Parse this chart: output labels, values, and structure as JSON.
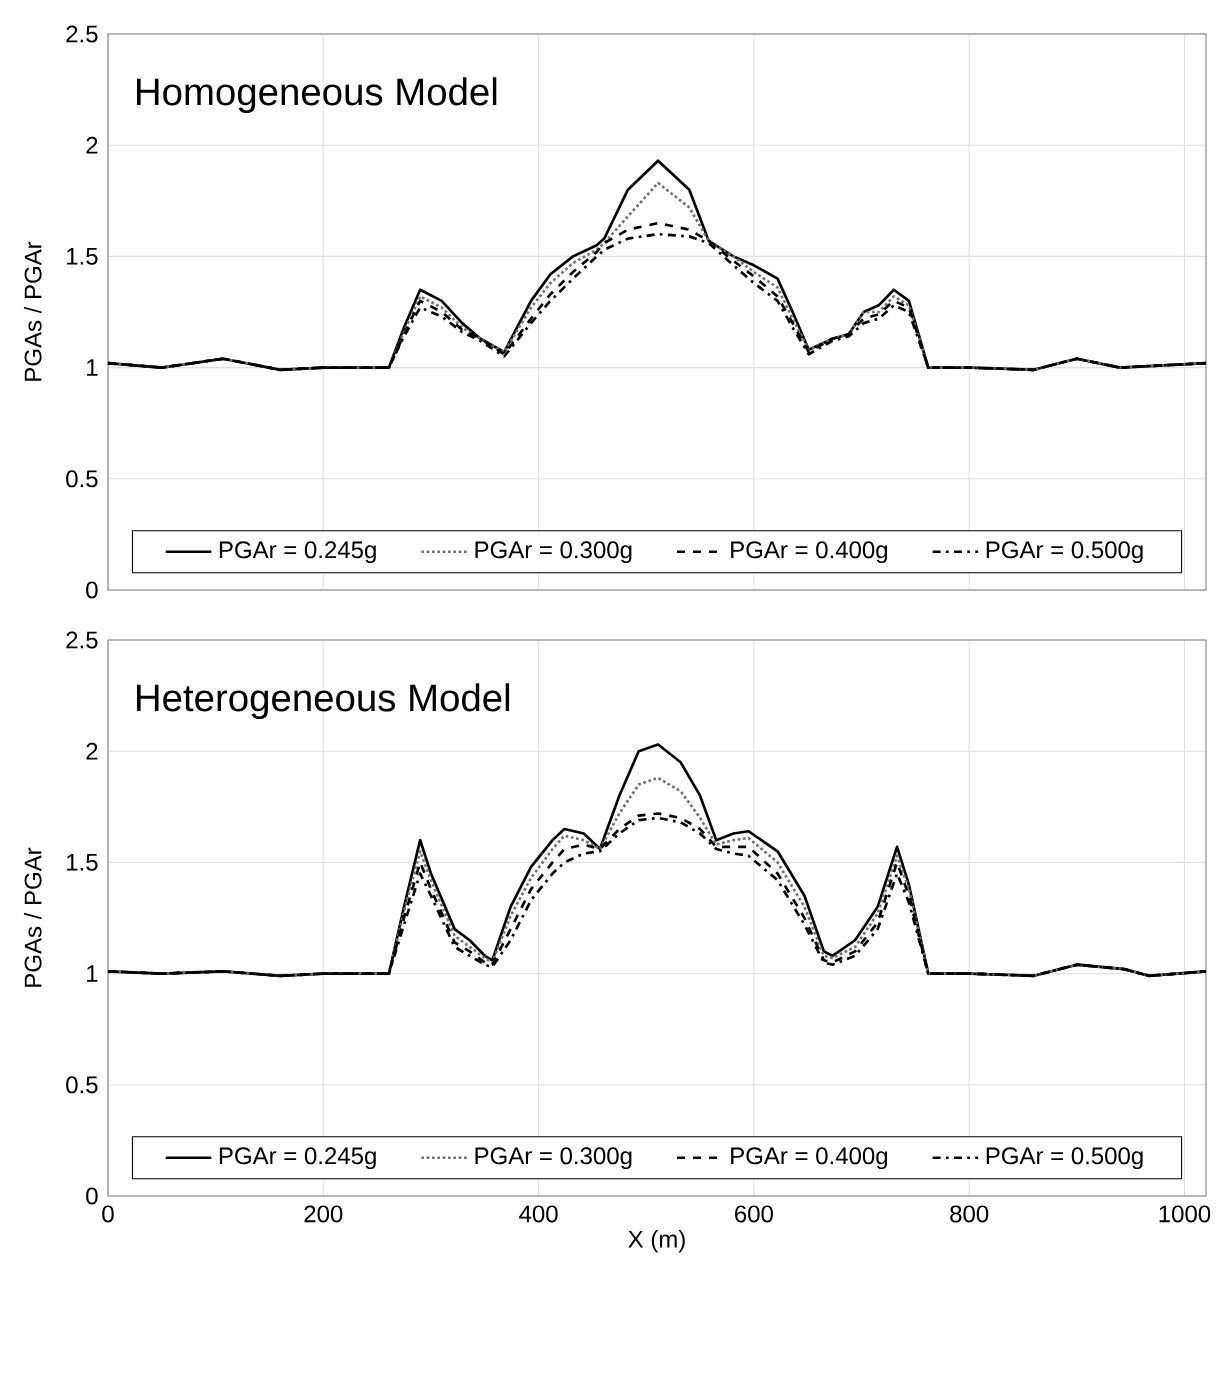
{
  "chart_data": [
    {
      "type": "line",
      "title": "Homogeneous Model",
      "ylabel": "PGAs / PGAr",
      "x": [
        0,
        50,
        107,
        160,
        200,
        261,
        275,
        290,
        310,
        329,
        346,
        368,
        393,
        411,
        432,
        454,
        461,
        483,
        511,
        540,
        558,
        581,
        600,
        622,
        636,
        651,
        673,
        688,
        702,
        716,
        730,
        744,
        762,
        800,
        860,
        900,
        940,
        980,
        1020
      ],
      "series": [
        {
          "name": "PGAr = 0.245g",
          "color": "#000000",
          "line_style": "solid",
          "values": [
            1.02,
            1.0,
            1.04,
            0.99,
            1.0,
            1.0,
            1.18,
            1.35,
            1.3,
            1.2,
            1.13,
            1.07,
            1.3,
            1.42,
            1.5,
            1.55,
            1.58,
            1.8,
            1.93,
            1.8,
            1.57,
            1.5,
            1.46,
            1.4,
            1.25,
            1.08,
            1.13,
            1.15,
            1.25,
            1.28,
            1.35,
            1.3,
            1.0,
            1.0,
            0.99,
            1.04,
            1.0,
            1.01,
            1.02
          ]
        },
        {
          "name": "PGAr = 0.300g",
          "color": "#707070",
          "line_style": "dotted",
          "values": [
            1.02,
            1.0,
            1.04,
            0.99,
            1.0,
            1.0,
            1.16,
            1.32,
            1.27,
            1.18,
            1.13,
            1.07,
            1.27,
            1.38,
            1.47,
            1.53,
            1.56,
            1.68,
            1.83,
            1.72,
            1.57,
            1.5,
            1.43,
            1.36,
            1.22,
            1.08,
            1.13,
            1.15,
            1.25,
            1.25,
            1.32,
            1.28,
            1.0,
            1.0,
            0.99,
            1.04,
            1.0,
            1.01,
            1.02
          ]
        },
        {
          "name": "PGAr = 0.400g",
          "color": "#000000",
          "line_style": "dashed",
          "values": [
            1.02,
            1.0,
            1.04,
            0.99,
            1.0,
            1.0,
            1.15,
            1.3,
            1.25,
            1.17,
            1.13,
            1.06,
            1.22,
            1.33,
            1.43,
            1.52,
            1.56,
            1.62,
            1.65,
            1.62,
            1.57,
            1.48,
            1.41,
            1.32,
            1.2,
            1.07,
            1.13,
            1.15,
            1.22,
            1.24,
            1.3,
            1.27,
            1.0,
            1.0,
            0.99,
            1.04,
            1.0,
            1.01,
            1.02
          ]
        },
        {
          "name": "PGAr = 0.500g",
          "color": "#000000",
          "line_style": "dashdot",
          "values": [
            1.02,
            1.0,
            1.04,
            0.99,
            1.0,
            1.0,
            1.14,
            1.27,
            1.23,
            1.16,
            1.12,
            1.05,
            1.2,
            1.3,
            1.4,
            1.5,
            1.53,
            1.58,
            1.6,
            1.59,
            1.56,
            1.46,
            1.38,
            1.3,
            1.18,
            1.06,
            1.12,
            1.14,
            1.2,
            1.22,
            1.28,
            1.25,
            1.0,
            1.0,
            0.99,
            1.04,
            1.0,
            1.01,
            1.02
          ]
        }
      ],
      "xlim": [
        0,
        1020
      ],
      "ylim": [
        0,
        2.5
      ],
      "xticks": [
        0,
        200,
        400,
        600,
        800,
        1000
      ],
      "yticks": [
        0,
        0.5,
        1,
        1.5,
        2,
        2.5
      ],
      "grid": true,
      "legend": "bottom",
      "tick_labels": "y"
    },
    {
      "type": "line",
      "title": "Heterogeneous Model",
      "ylabel": "PGAs / PGAr",
      "xlabel": "X (m)",
      "x": [
        0,
        50,
        107,
        160,
        200,
        261,
        275,
        290,
        300,
        322,
        336,
        350,
        357,
        374,
        393,
        413,
        424,
        442,
        457,
        475,
        493,
        511,
        532,
        550,
        565,
        581,
        595,
        622,
        647,
        665,
        673,
        694,
        715,
        733,
        744,
        762,
        800,
        860,
        900,
        944,
        967,
        1020
      ],
      "series": [
        {
          "name": "PGAr = 0.245g",
          "color": "#000000",
          "line_style": "solid",
          "values": [
            1.01,
            1.0,
            1.01,
            0.99,
            1.0,
            1.0,
            1.3,
            1.6,
            1.45,
            1.2,
            1.15,
            1.08,
            1.06,
            1.3,
            1.48,
            1.6,
            1.65,
            1.63,
            1.56,
            1.8,
            2.0,
            2.03,
            1.95,
            1.8,
            1.6,
            1.63,
            1.64,
            1.55,
            1.35,
            1.1,
            1.08,
            1.15,
            1.3,
            1.57,
            1.4,
            1.0,
            1.0,
            0.99,
            1.04,
            1.02,
            0.99,
            1.01
          ]
        },
        {
          "name": "PGAr = 0.300g",
          "color": "#707070",
          "line_style": "dotted",
          "values": [
            1.01,
            1.0,
            1.01,
            0.99,
            1.0,
            1.0,
            1.28,
            1.55,
            1.42,
            1.17,
            1.12,
            1.07,
            1.05,
            1.26,
            1.43,
            1.56,
            1.62,
            1.6,
            1.56,
            1.72,
            1.85,
            1.88,
            1.82,
            1.7,
            1.58,
            1.6,
            1.61,
            1.5,
            1.3,
            1.08,
            1.07,
            1.12,
            1.27,
            1.53,
            1.38,
            1.0,
            1.0,
            0.99,
            1.04,
            1.02,
            0.99,
            1.01
          ]
        },
        {
          "name": "PGAr = 0.400g",
          "color": "#000000",
          "line_style": "dashed",
          "values": [
            1.01,
            1.0,
            1.01,
            0.99,
            1.0,
            1.0,
            1.25,
            1.5,
            1.38,
            1.14,
            1.1,
            1.05,
            1.04,
            1.2,
            1.38,
            1.5,
            1.56,
            1.58,
            1.56,
            1.65,
            1.71,
            1.72,
            1.7,
            1.65,
            1.57,
            1.57,
            1.57,
            1.45,
            1.25,
            1.06,
            1.05,
            1.1,
            1.23,
            1.5,
            1.35,
            1.0,
            1.0,
            0.99,
            1.04,
            1.02,
            0.99,
            1.01
          ]
        },
        {
          "name": "PGAr = 0.500g",
          "color": "#000000",
          "line_style": "dashdot",
          "values": [
            1.01,
            1.0,
            1.01,
            0.99,
            1.0,
            1.0,
            1.22,
            1.45,
            1.35,
            1.12,
            1.08,
            1.04,
            1.03,
            1.15,
            1.33,
            1.45,
            1.5,
            1.54,
            1.55,
            1.63,
            1.69,
            1.7,
            1.68,
            1.63,
            1.56,
            1.54,
            1.53,
            1.42,
            1.22,
            1.05,
            1.04,
            1.08,
            1.2,
            1.45,
            1.32,
            1.0,
            1.0,
            0.99,
            1.04,
            1.02,
            0.99,
            1.01
          ]
        }
      ],
      "xlim": [
        0,
        1020
      ],
      "ylim": [
        0,
        2.5
      ],
      "xticks": [
        0,
        200,
        400,
        600,
        800,
        1000
      ],
      "yticks": [
        0,
        0.5,
        1,
        1.5,
        2,
        2.5
      ],
      "grid": true,
      "legend": "bottom"
    }
  ]
}
